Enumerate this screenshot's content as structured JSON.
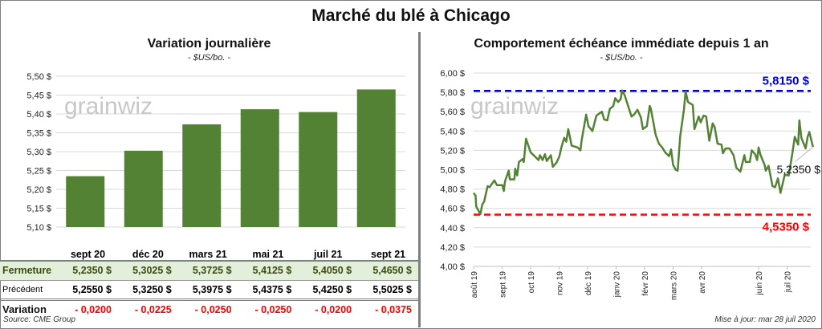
{
  "title": "Marché du blé à Chicago",
  "left": {
    "title": "Variation journalière",
    "unit": "- $US/bo. -"
  },
  "right": {
    "title": "Comportement  échéance immédiate depuis 1 an",
    "unit": "- $US/bo. -"
  },
  "watermark": "grainwiz",
  "table": {
    "columns": [
      "sept 20",
      "déc 20",
      "mars 21",
      "mai 21",
      "juil 21",
      "sept 21"
    ],
    "rows": [
      {
        "label": "Fermeture",
        "values": [
          "5,2350  $",
          "5,3025  $",
          "5,3725  $",
          "5,4125  $",
          "5,4050  $",
          "5,4650  $"
        ]
      },
      {
        "label": "Précédent",
        "values": [
          "5,2550  $",
          "5,3250  $",
          "5,3975  $",
          "5,4375  $",
          "5,4250  $",
          "5,5025  $"
        ]
      },
      {
        "label": "Variation",
        "values": [
          "- 0,0200",
          "- 0,0225",
          "- 0,0250",
          "- 0,0250",
          "- 0,0200",
          "- 0,0375"
        ]
      }
    ]
  },
  "source": "Source: CME Group",
  "update": "Mise à jour: mar 28 juil 2020",
  "colors": {
    "bar": "#548235",
    "line": "#548235",
    "max": "#0000cc",
    "min": "#ff0000"
  },
  "chart_data": [
    {
      "type": "bar",
      "title": "Variation journalière",
      "categories": [
        "sept 20",
        "déc 20",
        "mars 21",
        "mai 21",
        "juil 21",
        "sept 21"
      ],
      "values": [
        5.235,
        5.3025,
        5.3725,
        5.4125,
        5.405,
        5.465
      ],
      "ylim": [
        5.1,
        5.5
      ],
      "yticks": [
        "5,10 $",
        "5,15 $",
        "5,20 $",
        "5,25 $",
        "5,30 $",
        "5,35 $",
        "5,40 $",
        "5,45 $",
        "5,50 $"
      ]
    },
    {
      "type": "line",
      "title": "Comportement  échéance immédiate depuis 1 an",
      "ylim": [
        4.0,
        6.0
      ],
      "yticks": [
        "4,00 $",
        "4,20 $",
        "4,40 $",
        "4,60 $",
        "4,80 $",
        "5,00 $",
        "5,20 $",
        "5,40 $",
        "5,60 $",
        "5,80 $",
        "6,00 $"
      ],
      "xticks": [
        {
          "t": 0,
          "label": "août 19"
        },
        {
          "t": 1,
          "label": "sept 19"
        },
        {
          "t": 2,
          "label": "oct 19"
        },
        {
          "t": 3,
          "label": "nov 19"
        },
        {
          "t": 4,
          "label": "déc 19"
        },
        {
          "t": 5,
          "label": "janv 20"
        },
        {
          "t": 6,
          "label": "févr 20"
        },
        {
          "t": 7,
          "label": "mars 20"
        },
        {
          "t": 8,
          "label": "avr 20"
        },
        {
          "t": 10,
          "label": "juin 20"
        },
        {
          "t": 11,
          "label": "juil 20"
        }
      ],
      "max": {
        "value": 5.815,
        "label": "5,8150 $"
      },
      "min": {
        "value": 4.535,
        "label": "4,5350 $"
      },
      "last": {
        "value": 5.235,
        "label": "5,2350 $"
      },
      "points": [
        [
          0,
          4.76
        ],
        [
          0.07,
          4.73
        ],
        [
          0.09,
          4.62
        ],
        [
          0.24,
          4.54
        ],
        [
          0.3,
          4.64
        ],
        [
          0.37,
          4.67
        ],
        [
          0.49,
          4.83
        ],
        [
          0.56,
          4.82
        ],
        [
          0.73,
          4.89
        ],
        [
          0.82,
          4.84
        ],
        [
          1.01,
          4.84
        ],
        [
          1.06,
          4.78
        ],
        [
          1.1,
          4.88
        ],
        [
          1.23,
          4.99
        ],
        [
          1.27,
          4.9
        ],
        [
          1.43,
          4.9
        ],
        [
          1.46,
          5.01
        ],
        [
          1.53,
          4.94
        ],
        [
          1.59,
          5.08
        ],
        [
          1.72,
          5.11
        ],
        [
          1.76,
          5.08
        ],
        [
          1.84,
          5.32
        ],
        [
          2.0,
          5.18
        ],
        [
          2.14,
          5.14
        ],
        [
          2.28,
          5.1
        ],
        [
          2.33,
          5.15
        ],
        [
          2.42,
          5.1
        ],
        [
          2.5,
          5.16
        ],
        [
          2.57,
          5.09
        ],
        [
          2.71,
          5.15
        ],
        [
          2.78,
          5.03
        ],
        [
          2.92,
          5.08
        ],
        [
          3.01,
          5.14
        ],
        [
          3.08,
          5.23
        ],
        [
          3.18,
          5.33
        ],
        [
          3.25,
          5.29
        ],
        [
          3.32,
          5.42
        ],
        [
          3.44,
          5.25
        ],
        [
          3.65,
          5.23
        ],
        [
          3.75,
          5.2
        ],
        [
          3.79,
          5.3
        ],
        [
          3.95,
          5.57
        ],
        [
          4.03,
          5.45
        ],
        [
          4.17,
          5.4
        ],
        [
          4.31,
          5.56
        ],
        [
          4.5,
          5.6
        ],
        [
          4.58,
          5.52
        ],
        [
          4.69,
          5.51
        ],
        [
          4.78,
          5.63
        ],
        [
          4.9,
          5.66
        ],
        [
          4.97,
          5.74
        ],
        [
          5.07,
          5.7
        ],
        [
          5.16,
          5.73
        ],
        [
          5.21,
          5.82
        ],
        [
          5.3,
          5.77
        ],
        [
          5.54,
          5.55
        ],
        [
          5.63,
          5.57
        ],
        [
          5.75,
          5.62
        ],
        [
          5.87,
          5.54
        ],
        [
          5.94,
          5.42
        ],
        [
          6.08,
          5.45
        ],
        [
          6.18,
          5.66
        ],
        [
          6.22,
          5.63
        ],
        [
          6.39,
          5.36
        ],
        [
          6.5,
          5.27
        ],
        [
          6.62,
          5.23
        ],
        [
          6.72,
          5.18
        ],
        [
          6.86,
          5.14
        ],
        [
          6.93,
          5.21
        ],
        [
          7.0,
          5.05
        ],
        [
          7.09,
          5.0
        ],
        [
          7.16,
          4.99
        ],
        [
          7.25,
          5.35
        ],
        [
          7.38,
          5.62
        ],
        [
          7.44,
          5.81
        ],
        [
          7.52,
          5.7
        ],
        [
          7.69,
          5.67
        ],
        [
          7.75,
          5.42
        ],
        [
          7.9,
          5.55
        ],
        [
          7.97,
          5.49
        ],
        [
          8.07,
          5.56
        ],
        [
          8.16,
          5.55
        ],
        [
          8.27,
          5.3
        ],
        [
          8.39,
          5.48
        ],
        [
          8.46,
          5.44
        ],
        [
          8.56,
          5.27
        ],
        [
          8.7,
          5.26
        ],
        [
          8.75,
          5.17
        ],
        [
          8.84,
          5.22
        ],
        [
          8.98,
          5.22
        ],
        [
          9.12,
          5.15
        ],
        [
          9.22,
          5.02
        ],
        [
          9.36,
          4.98
        ],
        [
          9.5,
          5.15
        ],
        [
          9.55,
          5.08
        ],
        [
          9.69,
          5.08
        ],
        [
          9.76,
          5.2
        ],
        [
          9.88,
          5.16
        ],
        [
          9.95,
          5.1
        ],
        [
          10.0,
          5.23
        ],
        [
          10.07,
          5.15
        ],
        [
          10.21,
          5.05
        ],
        [
          10.25,
          4.99
        ],
        [
          10.35,
          5.04
        ],
        [
          10.49,
          4.83
        ],
        [
          10.58,
          4.82
        ],
        [
          10.68,
          4.91
        ],
        [
          10.77,
          4.76
        ],
        [
          10.92,
          4.95
        ],
        [
          11.06,
          4.94
        ],
        [
          11.18,
          5.16
        ],
        [
          11.27,
          5.34
        ],
        [
          11.39,
          5.26
        ],
        [
          11.43,
          5.51
        ],
        [
          11.5,
          5.33
        ],
        [
          11.65,
          5.22
        ],
        [
          11.72,
          5.34
        ],
        [
          11.78,
          5.39
        ],
        [
          11.91,
          5.235
        ]
      ]
    }
  ]
}
